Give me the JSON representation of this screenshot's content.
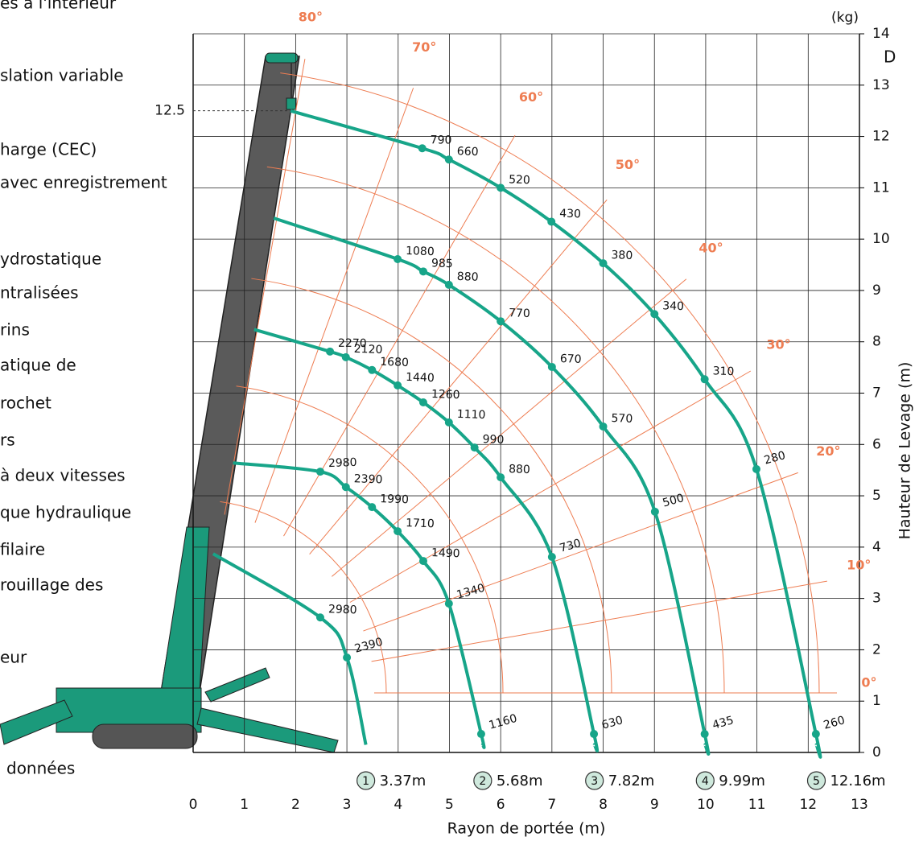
{
  "side_text": [
    "es à l'intérieur",
    "slation variable",
    "harge (CEC)",
    "avec enregistrement",
    "ydrostatique",
    "ntralisées",
    "rins",
    "atique de",
    "rochet",
    "rs",
    "à deux vitesses",
    "que hydraulique",
    "filaire",
    "rouillage des",
    "eur",
    "données"
  ],
  "corner_text": "D",
  "chart_data": {
    "type": "line",
    "x_label": "Rayon de portée (m)",
    "y_label": "Hauteur de Levage (m)",
    "unit_label": "(kg)",
    "xlim": [
      0,
      13
    ],
    "ylim": [
      0,
      14
    ],
    "xticks": [
      0,
      1,
      2,
      3,
      4,
      5,
      6,
      7,
      8,
      9,
      10,
      11,
      12,
      13
    ],
    "yticks": [
      0,
      1,
      2,
      3,
      4,
      5,
      6,
      7,
      8,
      9,
      10,
      11,
      12,
      13,
      14
    ],
    "grid": true,
    "color": "#17a589",
    "angle_color": "#ee7d52",
    "reference_height": 12.5,
    "angles": [
      {
        "value": 0,
        "label": "0°"
      },
      {
        "value": 10,
        "label": "10°"
      },
      {
        "value": 20,
        "label": "20°"
      },
      {
        "value": 30,
        "label": "30°"
      },
      {
        "value": 40,
        "label": "40°"
      },
      {
        "value": 50,
        "label": "50°"
      },
      {
        "value": 60,
        "label": "60°"
      },
      {
        "value": 70,
        "label": "70°"
      },
      {
        "value": 80,
        "label": "80°"
      }
    ],
    "series": [
      {
        "marker": "1",
        "name": "3.37m",
        "x": [
          0.39,
          2.48,
          3.0,
          3.37
        ],
        "values": [
          3.87,
          2.63,
          1.85,
          0.15
        ],
        "loads": [
          null,
          2980,
          2390,
          null
        ]
      },
      {
        "marker": "2",
        "name": "5.68m",
        "x": [
          0.78,
          2.48,
          2.98,
          3.49,
          3.99,
          4.49,
          4.99,
          5.62,
          5.65
        ],
        "values": [
          5.64,
          5.47,
          5.17,
          4.78,
          4.31,
          3.73,
          2.9,
          0.36,
          0.15
        ],
        "loads": [
          null,
          2980,
          2390,
          1990,
          1710,
          1490,
          1340,
          1160,
          null
        ]
      },
      {
        "marker": "3",
        "name": "7.82m",
        "x": [
          1.19,
          2.67,
          2.98,
          3.49,
          3.99,
          4.49,
          4.99,
          5.49,
          6.0,
          7.0,
          7.82,
          7.83
        ],
        "values": [
          8.24,
          7.81,
          7.7,
          7.45,
          7.15,
          6.82,
          6.43,
          5.94,
          5.36,
          3.81,
          0.36,
          0.15
        ],
        "loads": [
          null,
          2270,
          2120,
          1680,
          1440,
          1260,
          1110,
          990,
          880,
          730,
          630,
          null
        ]
      },
      {
        "marker": "4",
        "name": "9.99m",
        "x": [
          1.57,
          3.99,
          4.49,
          4.99,
          6.0,
          7.0,
          8.0,
          9.01,
          9.98,
          9.99
        ],
        "values": [
          10.41,
          9.61,
          9.37,
          9.11,
          8.4,
          7.51,
          6.35,
          4.69,
          0.36,
          0.15
        ],
        "loads": [
          null,
          1080,
          985,
          880,
          770,
          670,
          570,
          500,
          435,
          null
        ]
      },
      {
        "marker": "5",
        "name": "12.16m",
        "x": [
          1.9,
          4.47,
          4.99,
          6.0,
          6.99,
          8.0,
          9.0,
          9.98,
          10.99,
          12.15,
          12.16
        ],
        "values": [
          12.5,
          11.77,
          11.55,
          11.0,
          10.34,
          9.53,
          8.54,
          7.27,
          5.52,
          0.36,
          0.15
        ],
        "loads": [
          null,
          790,
          660,
          520,
          430,
          380,
          340,
          310,
          280,
          260,
          null
        ]
      }
    ]
  }
}
